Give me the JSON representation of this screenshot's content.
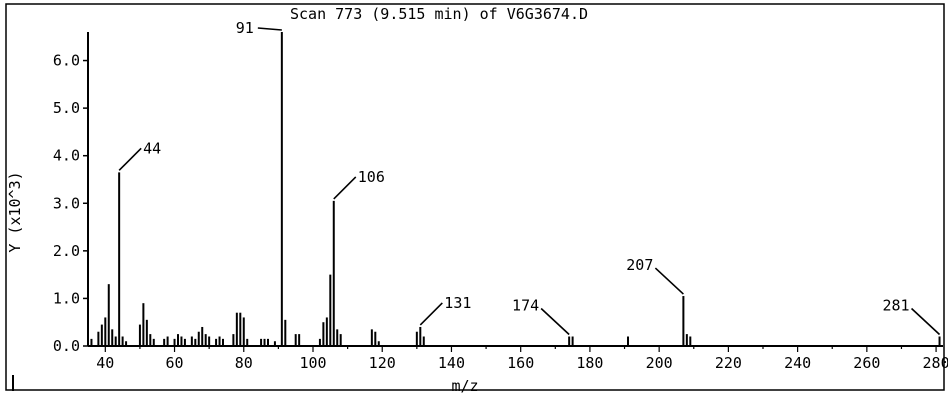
{
  "chart_data": {
    "type": "bar",
    "title": "Scan 773 (9.515 min) of V6G3674.D",
    "xlabel": "m/z",
    "ylabel": "Y (x10^3)",
    "xlim": [
      35,
      282
    ],
    "ylim": [
      0,
      6.6
    ],
    "x_ticks": [
      "40",
      "60",
      "80",
      "100",
      "120",
      "140",
      "160",
      "180",
      "200",
      "220",
      "240",
      "260",
      "280"
    ],
    "y_ticks": [
      "0.0",
      "1.0",
      "2.0",
      "3.0",
      "4.0",
      "5.0",
      "6.0"
    ],
    "grid": false,
    "series": [
      {
        "x": [
          36,
          38,
          39,
          40,
          41,
          42,
          43,
          44,
          45,
          46,
          50,
          51,
          52,
          53,
          54,
          57,
          58,
          60,
          61,
          62,
          63,
          65,
          66,
          67,
          68,
          69,
          70,
          72,
          73,
          74,
          77,
          78,
          79,
          80,
          81,
          85,
          86,
          87,
          89,
          91,
          92,
          95,
          96,
          102,
          103,
          104,
          105,
          106,
          107,
          108,
          117,
          118,
          119,
          130,
          131,
          132,
          174,
          175,
          191,
          207,
          208,
          209,
          281
        ],
        "y": [
          0.15,
          0.3,
          0.45,
          0.6,
          1.3,
          0.35,
          0.2,
          3.65,
          0.2,
          0.1,
          0.45,
          0.9,
          0.55,
          0.25,
          0.15,
          0.15,
          0.2,
          0.15,
          0.25,
          0.2,
          0.15,
          0.2,
          0.15,
          0.3,
          0.4,
          0.25,
          0.2,
          0.15,
          0.2,
          0.15,
          0.25,
          0.7,
          0.7,
          0.6,
          0.15,
          0.15,
          0.15,
          0.15,
          0.1,
          6.6,
          0.55,
          0.25,
          0.25,
          0.15,
          0.5,
          0.6,
          1.5,
          3.05,
          0.35,
          0.25,
          0.35,
          0.3,
          0.1,
          0.3,
          0.4,
          0.2,
          0.2,
          0.2,
          0.2,
          1.05,
          0.25,
          0.2,
          0.2
        ]
      }
    ],
    "annotations": [
      {
        "label": "91",
        "x": 91,
        "y": 6.6
      },
      {
        "label": "44",
        "x": 44,
        "y": 3.65
      },
      {
        "label": "106",
        "x": 106,
        "y": 3.05
      },
      {
        "label": "131",
        "x": 131,
        "y": 0.4
      },
      {
        "label": "174",
        "x": 174,
        "y": 0.2
      },
      {
        "label": "207",
        "x": 207,
        "y": 1.05
      },
      {
        "label": "281",
        "x": 281,
        "y": 0.2
      }
    ]
  }
}
